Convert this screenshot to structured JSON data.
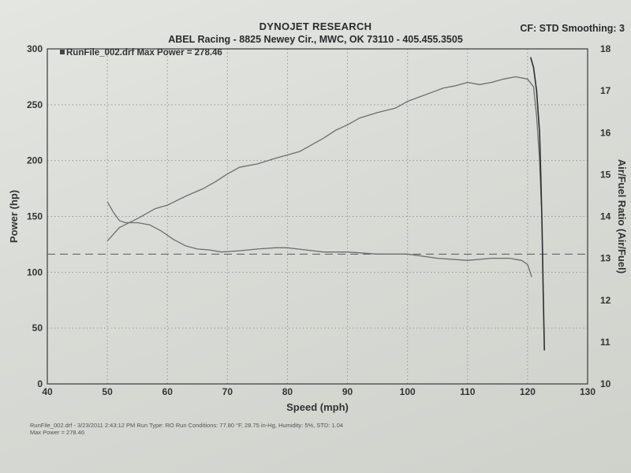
{
  "header": {
    "title": "DYNOJET RESEARCH",
    "subtitle": "ABEL Racing - 8825 Newey Cir., MWC, OK 73110 - 405.455.3505",
    "settings": "CF: STD  Smoothing: 3"
  },
  "footer": {
    "line1": "RunFile_002.drf - 3/23/2011 2:43:12 PM  Run Type: RO  Run Conditions: 77.80 °F, 28.75 in-Hg,  Humidity:  5%, STD: 1.04",
    "line2": "Max Power = 278.46"
  },
  "colors": {
    "curve": "#6e6e6e",
    "grid": "#9a9a9a",
    "axis": "#3a3a3a",
    "dark_curve": "#2e2e2e"
  },
  "chart_data": {
    "type": "line",
    "xlabel": "Speed (mph)",
    "ylabel": "Power (hp)",
    "y2label": "Air/Fuel Ratio (Air/Fuel)",
    "xlim": [
      40,
      130
    ],
    "ylim": [
      0,
      300
    ],
    "y2lim": [
      10,
      18
    ],
    "xticks": [
      "40",
      "50",
      "60",
      "70",
      "80",
      "90",
      "100",
      "110",
      "120",
      "130"
    ],
    "yticks": [
      "0",
      "50",
      "100",
      "150",
      "200",
      "250",
      "300"
    ],
    "y2ticks": [
      "10",
      "11",
      "12",
      "13",
      "14",
      "15",
      "16",
      "17",
      "18"
    ],
    "grid": true,
    "legend": "RunFile_002.drf Max Power = 278.46",
    "legend_position": "top-left",
    "reference_line_afr": 13.1,
    "series": [
      {
        "name": "RunFile_002.drf",
        "axis": "left",
        "x": [
          50,
          52,
          55,
          58,
          60,
          63,
          66,
          68,
          70,
          72,
          75,
          78,
          80,
          82,
          84,
          86,
          88,
          90,
          92,
          95,
          98,
          100,
          102,
          104,
          106,
          108,
          110,
          112,
          114,
          116,
          118,
          120,
          121,
          121.5,
          122,
          122.3
        ],
        "y": [
          128,
          140,
          148,
          157,
          160,
          168,
          175,
          181,
          188,
          194,
          197,
          202,
          205,
          208,
          214,
          220,
          227,
          232,
          238,
          243,
          247,
          253,
          257,
          261,
          265,
          267,
          270,
          268,
          270,
          273,
          275,
          273,
          266,
          240,
          200,
          160
        ]
      },
      {
        "name": "Air/Fuel",
        "axis": "right",
        "x": [
          50,
          51,
          52,
          53,
          55,
          57,
          59,
          61,
          63,
          65,
          67,
          69,
          72,
          75,
          78,
          80,
          83,
          86,
          90,
          95,
          100,
          105,
          110,
          114,
          117,
          119,
          120,
          120.7
        ],
        "y": [
          14.35,
          14.1,
          13.9,
          13.85,
          13.85,
          13.8,
          13.65,
          13.45,
          13.3,
          13.22,
          13.2,
          13.15,
          13.18,
          13.22,
          13.25,
          13.25,
          13.2,
          13.15,
          13.15,
          13.1,
          13.1,
          13.0,
          12.95,
          13.0,
          13.0,
          12.95,
          12.85,
          12.55
        ]
      },
      {
        "name": "Air/Fuel lean-out",
        "axis": "right",
        "x": [
          120.5,
          121,
          121.5,
          122,
          122.2,
          122.4,
          122.6,
          122.8
        ],
        "y": [
          17.8,
          17.55,
          17.0,
          16.0,
          15.0,
          13.8,
          12.2,
          10.8
        ]
      }
    ]
  }
}
